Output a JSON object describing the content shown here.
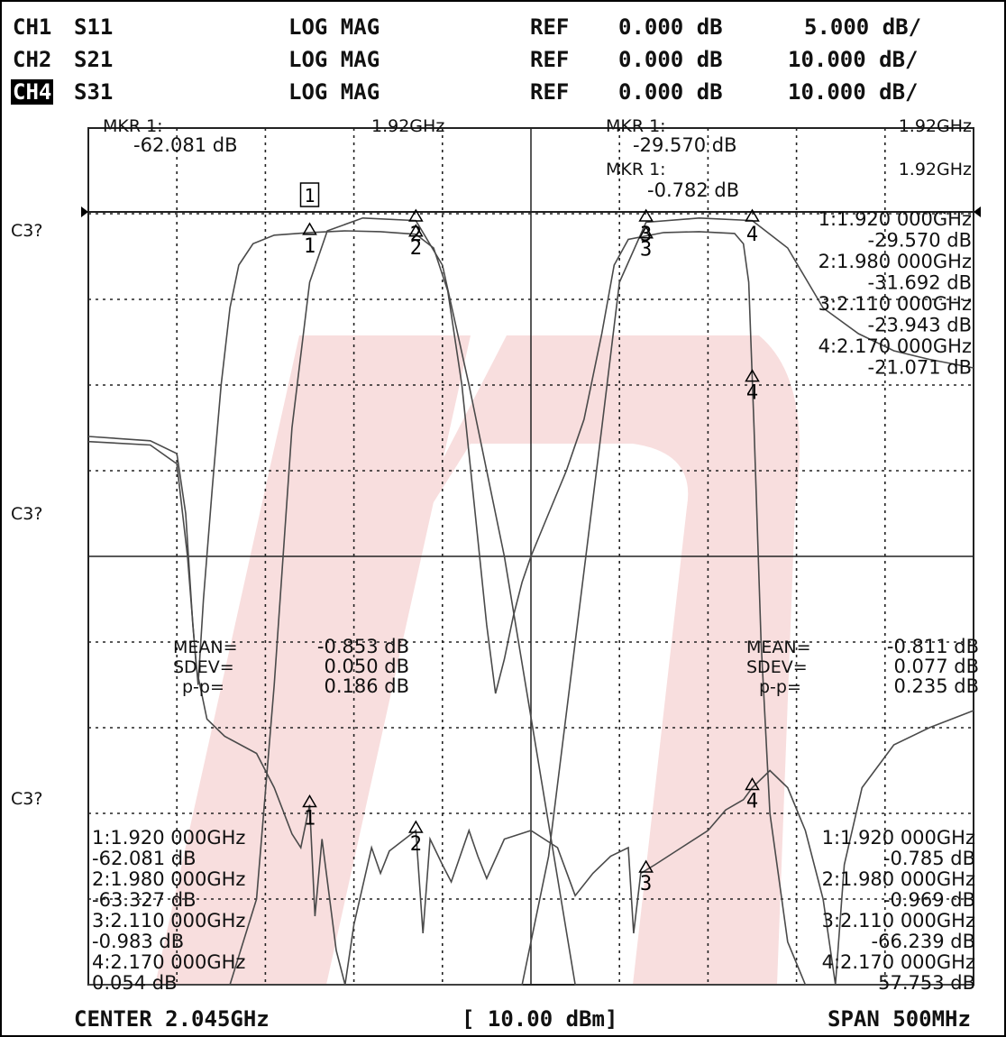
{
  "header": {
    "rows": [
      {
        "channel": "CH1",
        "param": "S11",
        "format": "LOG MAG",
        "ref_label": "REF",
        "ref_value": "0.000 dB",
        "scale": "5.000 dB/",
        "active": false
      },
      {
        "channel": "CH2",
        "param": "S21",
        "format": "LOG MAG",
        "ref_label": "REF",
        "ref_value": "0.000 dB",
        "scale": "10.000 dB/",
        "active": false
      },
      {
        "channel": "CH4",
        "param": "S31",
        "format": "LOG MAG",
        "ref_label": "REF",
        "ref_value": "0.000 dB",
        "scale": "10.000 dB/",
        "active": true
      }
    ]
  },
  "footer": {
    "center": "CENTER 2.045GHz",
    "power": "[ 10.00 dBm]",
    "span": "SPAN 500MHz"
  },
  "colors": {
    "trace": "#4a4a4a",
    "grid": "#222222",
    "watermark": "#f8dede"
  },
  "chart_data": {
    "type": "line",
    "x_unit": "GHz",
    "xlim": [
      1.795,
      2.295
    ],
    "y_side_labels": [
      "C3?",
      "C3?",
      "C3?"
    ],
    "annotations": {
      "top_left": [
        "MKR  1:",
        "1.92GHz",
        "-62.081 dB"
      ],
      "top_right": [
        "MKR  1:",
        "1.92GHz",
        "-29.570 dB",
        "MKR  1:",
        "1.92GHz",
        "-0.782 dB"
      ],
      "right_list": [
        "1:1.920 000GHz",
        "-29.570 dB",
        "2:1.980 000GHz",
        "-31.692 dB",
        "3:2.110 000GHz",
        "-23.943 dB",
        "4:2.170 000GHz",
        "-21.071 dB"
      ],
      "stats_left": [
        "MEAN=",
        "-0.853 dB",
        "SDEV=",
        "0.050 dB",
        "p-p=",
        "0.186 dB"
      ],
      "stats_right": [
        "MEAN=",
        "-0.811 dB",
        "SDEV=",
        "0.077 dB",
        "p-p=",
        "0.235 dB"
      ],
      "bottom_left": [
        "1:1.920 000GHz",
        "-62.081 dB",
        "2:1.980 000GHz",
        "-63.327 dB",
        "3:2.110 000GHz",
        "-0.983 dB",
        "4:2.170 000GHz",
        "0.054 dB"
      ],
      "bottom_right": [
        "1:1.920 000GHz",
        "-0.785 dB",
        "2:1.980 000GHz",
        "-0.969 dB",
        "3:2.110 000GHz",
        "-66.239 dB",
        "4:2.170 000GHz",
        "57.753 dB"
      ]
    },
    "markers": [
      {
        "label": "1",
        "x": 1.92
      },
      {
        "label": "2",
        "x": 1.98
      },
      {
        "label": "3",
        "x": 2.11
      },
      {
        "label": "4",
        "x": 2.17
      }
    ],
    "series": [
      {
        "param": "S11",
        "scale_db_per_div": 5,
        "points": [
          [
            1.795,
            -13.3
          ],
          [
            1.83,
            -13.5
          ],
          [
            1.845,
            -14.6
          ],
          [
            1.851,
            -20.0
          ],
          [
            1.856,
            -26.5
          ],
          [
            1.862,
            -29.5
          ],
          [
            1.872,
            -30.5
          ],
          [
            1.89,
            -31.5
          ],
          [
            1.9,
            -33.5
          ],
          [
            1.91,
            -36.2
          ],
          [
            1.915,
            -37.0
          ],
          [
            1.92,
            -34.5
          ],
          [
            1.923,
            -41.0
          ],
          [
            1.927,
            -36.5
          ],
          [
            1.935,
            -43.0
          ],
          [
            1.94,
            -46.5
          ],
          [
            1.945,
            -41.5
          ],
          [
            1.955,
            -37.0
          ],
          [
            1.96,
            -38.5
          ],
          [
            1.965,
            -37.2
          ],
          [
            1.98,
            -36.0
          ],
          [
            1.984,
            -42.0
          ],
          [
            1.988,
            -36.5
          ],
          [
            1.995,
            -38.0
          ],
          [
            2.0,
            -39.0
          ],
          [
            2.01,
            -36.0
          ],
          [
            2.015,
            -37.5
          ],
          [
            2.02,
            -38.8
          ],
          [
            2.03,
            -36.5
          ],
          [
            2.045,
            -36.0
          ],
          [
            2.06,
            -37.0
          ],
          [
            2.07,
            -39.8
          ],
          [
            2.08,
            -38.5
          ],
          [
            2.09,
            -37.5
          ],
          [
            2.1,
            -37.0
          ],
          [
            2.103,
            -42.0
          ],
          [
            2.107,
            -38.5
          ],
          [
            2.115,
            -38.0
          ],
          [
            2.13,
            -37.0
          ],
          [
            2.145,
            -36.0
          ],
          [
            2.155,
            -34.8
          ],
          [
            2.165,
            -34.2
          ],
          [
            2.17,
            -33.5
          ],
          [
            2.18,
            -32.5
          ],
          [
            2.19,
            -33.5
          ],
          [
            2.2,
            -36.0
          ],
          [
            2.21,
            -40.0
          ],
          [
            2.217,
            -45.0
          ],
          [
            2.222,
            -38.0
          ],
          [
            2.232,
            -33.5
          ],
          [
            2.25,
            -31.0
          ],
          [
            2.27,
            -30.0
          ],
          [
            2.295,
            -29.0
          ]
        ]
      },
      {
        "param": "S21",
        "scale_db_per_div": 10,
        "points": [
          [
            1.795,
            -100
          ],
          [
            1.84,
            -100
          ],
          [
            1.86,
            -100
          ],
          [
            1.875,
            -95
          ],
          [
            1.89,
            -80
          ],
          [
            1.9,
            -55
          ],
          [
            1.91,
            -25
          ],
          [
            1.92,
            -8
          ],
          [
            1.93,
            -2
          ],
          [
            1.95,
            -0.5
          ],
          [
            1.98,
            -0.8
          ],
          [
            1.995,
            -6
          ],
          [
            2.01,
            -20
          ],
          [
            2.03,
            -40
          ],
          [
            2.05,
            -65
          ],
          [
            2.07,
            -90
          ],
          [
            2.08,
            -100
          ],
          [
            2.295,
            -100
          ]
        ]
      },
      {
        "param": "S31",
        "scale_db_per_div": 10,
        "points": [
          [
            1.795,
            -100
          ],
          [
            2.02,
            -100
          ],
          [
            2.04,
            -92
          ],
          [
            2.055,
            -75
          ],
          [
            2.07,
            -50
          ],
          [
            2.085,
            -25
          ],
          [
            2.095,
            -8
          ],
          [
            2.11,
            -1
          ],
          [
            2.14,
            -0.5
          ],
          [
            2.17,
            -0.8
          ],
          [
            2.19,
            -4
          ],
          [
            2.21,
            -11
          ],
          [
            2.23,
            -14
          ],
          [
            2.25,
            -16
          ],
          [
            2.27,
            -17
          ],
          [
            2.295,
            -18
          ]
        ]
      },
      {
        "param": "S31-reflection",
        "scale_db_per_div": 10,
        "points": [
          [
            1.795,
            -26
          ],
          [
            1.83,
            -26.5
          ],
          [
            1.845,
            -28
          ],
          [
            1.85,
            -35
          ],
          [
            1.854,
            -48
          ],
          [
            1.857,
            -55
          ],
          [
            1.86,
            -45
          ],
          [
            1.865,
            -32
          ],
          [
            1.87,
            -20
          ],
          [
            1.875,
            -11
          ],
          [
            1.88,
            -6
          ],
          [
            1.888,
            -3.5
          ],
          [
            1.9,
            -2.5
          ],
          [
            1.92,
            -2.2
          ],
          [
            1.94,
            -2.0
          ],
          [
            1.96,
            -2.1
          ],
          [
            1.98,
            -2.4
          ],
          [
            1.99,
            -4
          ],
          [
            1.998,
            -9
          ],
          [
            2.006,
            -20
          ],
          [
            2.015,
            -38
          ],
          [
            2.02,
            -48
          ],
          [
            2.025,
            -56
          ],
          [
            2.03,
            -52
          ],
          [
            2.035,
            -47
          ],
          [
            2.04,
            -43
          ],
          [
            2.045,
            -40
          ],
          [
            2.055,
            -35
          ],
          [
            2.065,
            -30
          ],
          [
            2.075,
            -24
          ],
          [
            2.085,
            -14
          ],
          [
            2.092,
            -6
          ],
          [
            2.1,
            -3
          ],
          [
            2.12,
            -2.2
          ],
          [
            2.14,
            -2.1
          ],
          [
            2.16,
            -2.3
          ],
          [
            2.165,
            -3.5
          ],
          [
            2.168,
            -8
          ],
          [
            2.171,
            -25
          ],
          [
            2.175,
            -50
          ],
          [
            2.18,
            -70
          ],
          [
            2.19,
            -85
          ],
          [
            2.2,
            -95
          ],
          [
            2.295,
            -100
          ]
        ]
      }
    ]
  }
}
